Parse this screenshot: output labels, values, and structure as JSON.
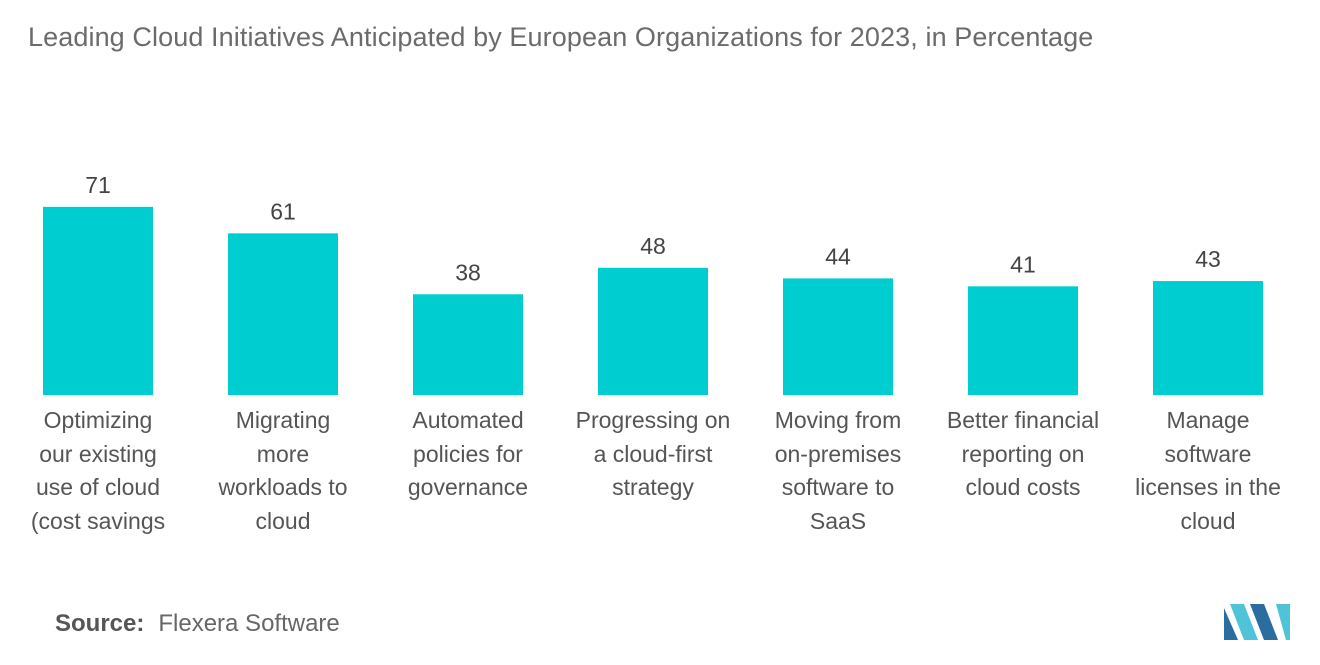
{
  "title": "Leading Cloud Initiatives Anticipated by European Organizations for 2023, in Percentage",
  "source": {
    "label": "Source:",
    "value": "Flexera Software"
  },
  "colors": {
    "bar": "#00CDD0",
    "text": "#555555",
    "logo_dark": "#2a6d9e",
    "logo_light": "#4fc3d8"
  },
  "logo_icon": "mordor-intelligence-logo-icon",
  "chart_data": {
    "type": "bar",
    "title": "Leading Cloud Initiatives Anticipated by European Organizations for 2023, in Percentage",
    "xlabel": "",
    "ylabel": "",
    "ylim": [
      0,
      80
    ],
    "grid": false,
    "categories": [
      "Optimizing our existing use of cloud (cost savings",
      "Migrating more workloads to cloud",
      "Automated policies for governance",
      "Progressing on a cloud-first strategy",
      "Moving from on-premises software to SaaS",
      "Better financial reporting on cloud costs",
      "Manage software licenses in the cloud"
    ],
    "category_lines": [
      [
        "Optimizing",
        "our existing",
        "use of cloud",
        "(cost savings"
      ],
      [
        "Migrating",
        "more",
        "workloads to",
        "cloud"
      ],
      [
        "Automated",
        "policies for",
        "governance"
      ],
      [
        "Progressing on",
        "a cloud-first",
        "strategy"
      ],
      [
        "Moving from",
        "on-premises",
        "software to",
        "SaaS"
      ],
      [
        "Better financial",
        "reporting on",
        "cloud costs"
      ],
      [
        "Manage",
        "software",
        "licenses in the",
        "cloud"
      ]
    ],
    "values": [
      71,
      61,
      38,
      48,
      44,
      41,
      43
    ]
  }
}
